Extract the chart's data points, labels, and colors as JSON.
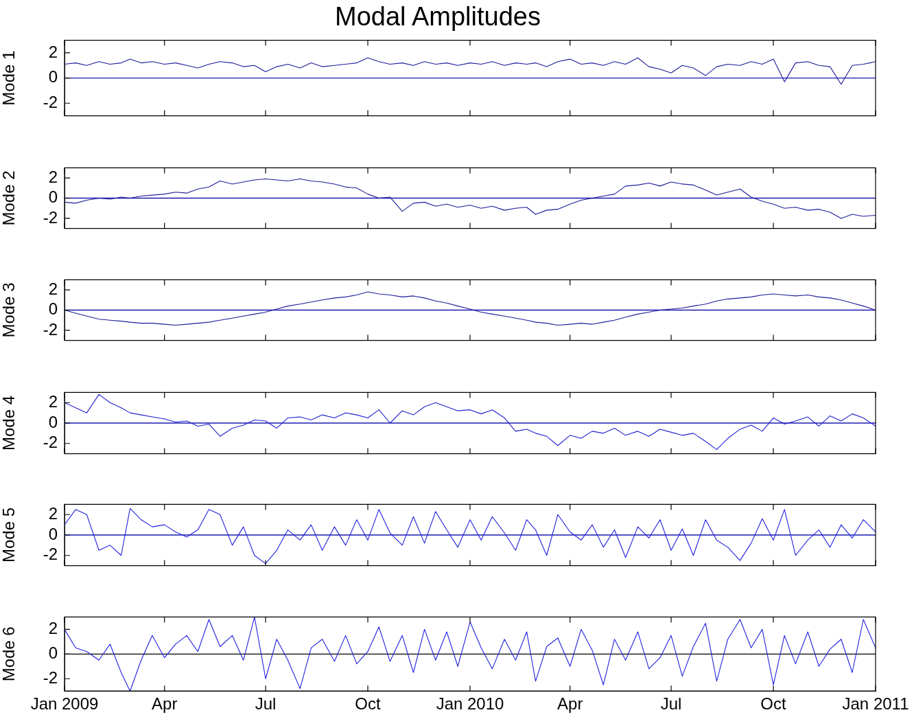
{
  "chart_data": [
    {
      "type": "line",
      "title": "Modal Amplitudes",
      "ylabel": "Mode 1",
      "tick_labels": "y",
      "legend": false,
      "marker": "none",
      "xlim": [
        "2009-01-01",
        "2011-01-01"
      ],
      "ylim": [
        -3,
        3
      ],
      "yticks": [
        -2,
        0,
        2
      ],
      "xticks": [
        {
          "value": "2009-01-01",
          "label": null
        },
        {
          "value": "2009-04-01",
          "label": null
        },
        {
          "value": "2009-07-01",
          "label": null
        },
        {
          "value": "2009-10-01",
          "label": null
        },
        {
          "value": "2010-01-01",
          "label": null
        },
        {
          "value": "2010-04-01",
          "label": null
        },
        {
          "value": "2010-07-01",
          "label": null
        },
        {
          "value": "2010-10-01",
          "label": null
        },
        {
          "value": "2011-01-01",
          "label": null
        }
      ],
      "ref_lines": [
        {
          "axis": "y",
          "value": 0,
          "color": "#1a1ab0"
        }
      ],
      "x": [
        "2009-01-01",
        "2009-01-11",
        "2009-01-21",
        "2009-02-01",
        "2009-02-11",
        "2009-02-21",
        "2009-03-01",
        "2009-03-11",
        "2009-03-21",
        "2009-04-01",
        "2009-04-11",
        "2009-04-21",
        "2009-05-01",
        "2009-05-11",
        "2009-05-21",
        "2009-06-01",
        "2009-06-11",
        "2009-06-21",
        "2009-07-01",
        "2009-07-11",
        "2009-07-21",
        "2009-08-01",
        "2009-08-11",
        "2009-08-21",
        "2009-09-01",
        "2009-09-11",
        "2009-09-21",
        "2009-10-01",
        "2009-10-11",
        "2009-10-21",
        "2009-11-01",
        "2009-11-11",
        "2009-11-21",
        "2009-12-01",
        "2009-12-11",
        "2009-12-21",
        "2010-01-01",
        "2010-01-11",
        "2010-01-21",
        "2010-02-01",
        "2010-02-11",
        "2010-02-21",
        "2010-03-01",
        "2010-03-11",
        "2010-03-21",
        "2010-04-01",
        "2010-04-11",
        "2010-04-21",
        "2010-05-01",
        "2010-05-11",
        "2010-05-21",
        "2010-06-01",
        "2010-06-11",
        "2010-06-21",
        "2010-07-01",
        "2010-07-11",
        "2010-07-21",
        "2010-08-01",
        "2010-08-11",
        "2010-08-21",
        "2010-09-01",
        "2010-09-11",
        "2010-09-21",
        "2010-10-01",
        "2010-10-11",
        "2010-10-21",
        "2010-11-01",
        "2010-11-11",
        "2010-11-21",
        "2010-12-01",
        "2010-12-11",
        "2010-12-21",
        "2011-01-01"
      ],
      "series": [
        {
          "color": "#1c1c9a",
          "values": [
            1.1,
            1.2,
            1.0,
            1.3,
            1.1,
            1.2,
            1.5,
            1.2,
            1.3,
            1.1,
            1.2,
            1.0,
            0.8,
            1.1,
            1.3,
            1.2,
            0.9,
            1.0,
            0.5,
            0.9,
            1.1,
            0.8,
            1.2,
            0.9,
            1.0,
            1.1,
            1.2,
            1.6,
            1.3,
            1.1,
            1.2,
            1.0,
            1.3,
            1.1,
            1.2,
            1.0,
            1.2,
            1.1,
            1.3,
            1.0,
            1.2,
            1.1,
            1.2,
            0.9,
            1.3,
            1.5,
            1.1,
            1.2,
            1.0,
            1.3,
            1.1,
            1.6,
            0.9,
            0.7,
            0.4,
            1.0,
            0.8,
            0.2,
            0.9,
            1.1,
            1.0,
            1.3,
            1.1,
            1.5,
            -0.3,
            1.2,
            1.3,
            1.0,
            0.9,
            -0.5,
            1.0,
            1.1,
            1.3
          ]
        }
      ]
    },
    {
      "type": "line",
      "ylabel": "Mode 2",
      "tick_labels": "y",
      "legend": false,
      "marker": "none",
      "xlim": [
        "2009-01-01",
        "2011-01-01"
      ],
      "ylim": [
        -3,
        3
      ],
      "yticks": [
        -2,
        0,
        2
      ],
      "xticks": [
        {
          "value": "2009-01-01",
          "label": null
        },
        {
          "value": "2009-04-01",
          "label": null
        },
        {
          "value": "2009-07-01",
          "label": null
        },
        {
          "value": "2009-10-01",
          "label": null
        },
        {
          "value": "2010-01-01",
          "label": null
        },
        {
          "value": "2010-04-01",
          "label": null
        },
        {
          "value": "2010-07-01",
          "label": null
        },
        {
          "value": "2010-10-01",
          "label": null
        },
        {
          "value": "2011-01-01",
          "label": null
        }
      ],
      "ref_lines": [
        {
          "axis": "y",
          "value": 0,
          "color": "#1a1ab0"
        }
      ],
      "x": [
        "2009-01-01",
        "2009-01-11",
        "2009-01-21",
        "2009-02-01",
        "2009-02-11",
        "2009-02-21",
        "2009-03-01",
        "2009-03-11",
        "2009-03-21",
        "2009-04-01",
        "2009-04-11",
        "2009-04-21",
        "2009-05-01",
        "2009-05-11",
        "2009-05-21",
        "2009-06-01",
        "2009-06-11",
        "2009-06-21",
        "2009-07-01",
        "2009-07-11",
        "2009-07-21",
        "2009-08-01",
        "2009-08-11",
        "2009-08-21",
        "2009-09-01",
        "2009-09-11",
        "2009-09-21",
        "2009-10-01",
        "2009-10-11",
        "2009-10-21",
        "2009-11-01",
        "2009-11-11",
        "2009-11-21",
        "2009-12-01",
        "2009-12-11",
        "2009-12-21",
        "2010-01-01",
        "2010-01-11",
        "2010-01-21",
        "2010-02-01",
        "2010-02-11",
        "2010-02-21",
        "2010-03-01",
        "2010-03-11",
        "2010-03-21",
        "2010-04-01",
        "2010-04-11",
        "2010-04-21",
        "2010-05-01",
        "2010-05-11",
        "2010-05-21",
        "2010-06-01",
        "2010-06-11",
        "2010-06-21",
        "2010-07-01",
        "2010-07-11",
        "2010-07-21",
        "2010-08-01",
        "2010-08-11",
        "2010-08-21",
        "2010-09-01",
        "2010-09-11",
        "2010-09-21",
        "2010-10-01",
        "2010-10-11",
        "2010-10-21",
        "2010-11-01",
        "2010-11-11",
        "2010-11-21",
        "2010-12-01",
        "2010-12-11",
        "2010-12-21",
        "2011-01-01"
      ],
      "series": [
        {
          "color": "#1c1c9a",
          "values": [
            -0.4,
            -0.5,
            -0.2,
            0.0,
            -0.1,
            0.1,
            0.0,
            0.2,
            0.3,
            0.4,
            0.6,
            0.5,
            0.9,
            1.1,
            1.7,
            1.4,
            1.6,
            1.8,
            1.9,
            1.8,
            1.7,
            1.9,
            1.7,
            1.6,
            1.4,
            1.1,
            1.0,
            0.4,
            0.0,
            0.1,
            -1.3,
            -0.5,
            -0.4,
            -0.8,
            -0.6,
            -0.9,
            -0.7,
            -1.0,
            -0.8,
            -1.2,
            -1.0,
            -0.9,
            -1.6,
            -1.2,
            -1.1,
            -0.6,
            -0.2,
            0.0,
            0.2,
            0.4,
            1.2,
            1.3,
            1.5,
            1.2,
            1.6,
            1.4,
            1.3,
            0.8,
            0.3,
            0.6,
            0.9,
            0.1,
            -0.3,
            -0.6,
            -1.0,
            -0.9,
            -1.2,
            -1.1,
            -1.4,
            -2.0,
            -1.6,
            -1.8,
            -1.7
          ]
        }
      ]
    },
    {
      "type": "line",
      "ylabel": "Mode 3",
      "tick_labels": "y",
      "legend": false,
      "marker": "none",
      "xlim": [
        "2009-01-01",
        "2011-01-01"
      ],
      "ylim": [
        -3,
        3
      ],
      "yticks": [
        -2,
        0,
        2
      ],
      "xticks": [
        {
          "value": "2009-01-01",
          "label": null
        },
        {
          "value": "2009-04-01",
          "label": null
        },
        {
          "value": "2009-07-01",
          "label": null
        },
        {
          "value": "2009-10-01",
          "label": null
        },
        {
          "value": "2010-01-01",
          "label": null
        },
        {
          "value": "2010-04-01",
          "label": null
        },
        {
          "value": "2010-07-01",
          "label": null
        },
        {
          "value": "2010-10-01",
          "label": null
        },
        {
          "value": "2011-01-01",
          "label": null
        }
      ],
      "ref_lines": [
        {
          "axis": "y",
          "value": 0,
          "color": "#1a1ab0"
        }
      ],
      "x": [
        "2009-01-01",
        "2009-01-11",
        "2009-01-21",
        "2009-02-01",
        "2009-02-11",
        "2009-02-21",
        "2009-03-01",
        "2009-03-11",
        "2009-03-21",
        "2009-04-01",
        "2009-04-11",
        "2009-04-21",
        "2009-05-01",
        "2009-05-11",
        "2009-05-21",
        "2009-06-01",
        "2009-06-11",
        "2009-06-21",
        "2009-07-01",
        "2009-07-11",
        "2009-07-21",
        "2009-08-01",
        "2009-08-11",
        "2009-08-21",
        "2009-09-01",
        "2009-09-11",
        "2009-09-21",
        "2009-10-01",
        "2009-10-11",
        "2009-10-21",
        "2009-11-01",
        "2009-11-11",
        "2009-11-21",
        "2009-12-01",
        "2009-12-11",
        "2009-12-21",
        "2010-01-01",
        "2010-01-11",
        "2010-01-21",
        "2010-02-01",
        "2010-02-11",
        "2010-02-21",
        "2010-03-01",
        "2010-03-11",
        "2010-03-21",
        "2010-04-01",
        "2010-04-11",
        "2010-04-21",
        "2010-05-01",
        "2010-05-11",
        "2010-05-21",
        "2010-06-01",
        "2010-06-11",
        "2010-06-21",
        "2010-07-01",
        "2010-07-11",
        "2010-07-21",
        "2010-08-01",
        "2010-08-11",
        "2010-08-21",
        "2010-09-01",
        "2010-09-11",
        "2010-09-21",
        "2010-10-01",
        "2010-10-11",
        "2010-10-21",
        "2010-11-01",
        "2010-11-11",
        "2010-11-21",
        "2010-12-01",
        "2010-12-11",
        "2010-12-21",
        "2011-01-01"
      ],
      "series": [
        {
          "color": "#1c1c9a",
          "values": [
            0.0,
            -0.3,
            -0.6,
            -0.9,
            -1.0,
            -1.1,
            -1.2,
            -1.3,
            -1.3,
            -1.4,
            -1.5,
            -1.4,
            -1.3,
            -1.2,
            -1.0,
            -0.8,
            -0.6,
            -0.4,
            -0.2,
            0.1,
            0.4,
            0.6,
            0.8,
            1.0,
            1.2,
            1.3,
            1.5,
            1.8,
            1.6,
            1.5,
            1.3,
            1.4,
            1.2,
            0.9,
            0.7,
            0.4,
            0.1,
            -0.2,
            -0.4,
            -0.6,
            -0.8,
            -1.0,
            -1.2,
            -1.3,
            -1.5,
            -1.4,
            -1.3,
            -1.4,
            -1.2,
            -1.0,
            -0.7,
            -0.4,
            -0.2,
            0.0,
            0.1,
            0.2,
            0.4,
            0.6,
            0.9,
            1.1,
            1.2,
            1.3,
            1.5,
            1.6,
            1.5,
            1.4,
            1.5,
            1.3,
            1.2,
            1.0,
            0.7,
            0.4,
            0.0
          ]
        }
      ]
    },
    {
      "type": "line",
      "ylabel": "Mode 4",
      "tick_labels": "y",
      "legend": false,
      "marker": "none",
      "xlim": [
        "2009-01-01",
        "2011-01-01"
      ],
      "ylim": [
        -3,
        3
      ],
      "yticks": [
        -2,
        0,
        2
      ],
      "xticks": [
        {
          "value": "2009-01-01",
          "label": null
        },
        {
          "value": "2009-04-01",
          "label": null
        },
        {
          "value": "2009-07-01",
          "label": null
        },
        {
          "value": "2009-10-01",
          "label": null
        },
        {
          "value": "2010-01-01",
          "label": null
        },
        {
          "value": "2010-04-01",
          "label": null
        },
        {
          "value": "2010-07-01",
          "label": null
        },
        {
          "value": "2010-10-01",
          "label": null
        },
        {
          "value": "2011-01-01",
          "label": null
        }
      ],
      "ref_lines": [
        {
          "axis": "y",
          "value": 0,
          "color": "#1a1ab0"
        }
      ],
      "x": [
        "2009-01-01",
        "2009-01-11",
        "2009-01-21",
        "2009-02-01",
        "2009-02-11",
        "2009-02-21",
        "2009-03-01",
        "2009-03-11",
        "2009-03-21",
        "2009-04-01",
        "2009-04-11",
        "2009-04-21",
        "2009-05-01",
        "2009-05-11",
        "2009-05-21",
        "2009-06-01",
        "2009-06-11",
        "2009-06-21",
        "2009-07-01",
        "2009-07-11",
        "2009-07-21",
        "2009-08-01",
        "2009-08-11",
        "2009-08-21",
        "2009-09-01",
        "2009-09-11",
        "2009-09-21",
        "2009-10-01",
        "2009-10-11",
        "2009-10-21",
        "2009-11-01",
        "2009-11-11",
        "2009-11-21",
        "2009-12-01",
        "2009-12-11",
        "2009-12-21",
        "2010-01-01",
        "2010-01-11",
        "2010-01-21",
        "2010-02-01",
        "2010-02-11",
        "2010-02-21",
        "2010-03-01",
        "2010-03-11",
        "2010-03-21",
        "2010-04-01",
        "2010-04-11",
        "2010-04-21",
        "2010-05-01",
        "2010-05-11",
        "2010-05-21",
        "2010-06-01",
        "2010-06-11",
        "2010-06-21",
        "2010-07-01",
        "2010-07-11",
        "2010-07-21",
        "2010-08-01",
        "2010-08-11",
        "2010-08-21",
        "2010-09-01",
        "2010-09-11",
        "2010-09-21",
        "2010-10-01",
        "2010-10-11",
        "2010-10-21",
        "2010-11-01",
        "2010-11-11",
        "2010-11-21",
        "2010-12-01",
        "2010-12-11",
        "2010-12-21",
        "2011-01-01"
      ],
      "series": [
        {
          "color": "#2020d0",
          "values": [
            2.0,
            1.5,
            1.0,
            2.8,
            2.0,
            1.5,
            1.0,
            0.8,
            0.6,
            0.4,
            0.1,
            0.2,
            -0.3,
            -0.1,
            -1.3,
            -0.5,
            -0.2,
            0.3,
            0.2,
            -0.5,
            0.5,
            0.6,
            0.3,
            0.8,
            0.5,
            1.0,
            0.8,
            0.5,
            1.3,
            0.0,
            1.2,
            0.8,
            1.6,
            2.0,
            1.6,
            1.2,
            1.3,
            0.9,
            1.3,
            0.5,
            -0.8,
            -0.6,
            -1.0,
            -1.3,
            -2.2,
            -1.2,
            -1.5,
            -0.8,
            -1.0,
            -0.5,
            -1.2,
            -0.8,
            -1.3,
            -0.6,
            -0.9,
            -1.2,
            -1.0,
            -1.8,
            -2.6,
            -1.5,
            -0.6,
            -0.2,
            -0.8,
            0.5,
            -0.1,
            0.2,
            0.6,
            -0.3,
            0.7,
            0.2,
            0.9,
            0.5,
            -0.3
          ]
        }
      ]
    },
    {
      "type": "line",
      "ylabel": "Mode 5",
      "tick_labels": "y",
      "legend": false,
      "marker": "none",
      "xlim": [
        "2009-01-01",
        "2011-01-01"
      ],
      "ylim": [
        -3,
        3
      ],
      "yticks": [
        -2,
        0,
        2
      ],
      "xticks": [
        {
          "value": "2009-01-01",
          "label": null
        },
        {
          "value": "2009-04-01",
          "label": null
        },
        {
          "value": "2009-07-01",
          "label": null
        },
        {
          "value": "2009-10-01",
          "label": null
        },
        {
          "value": "2010-01-01",
          "label": null
        },
        {
          "value": "2010-04-01",
          "label": null
        },
        {
          "value": "2010-07-01",
          "label": null
        },
        {
          "value": "2010-10-01",
          "label": null
        },
        {
          "value": "2011-01-01",
          "label": null
        }
      ],
      "ref_lines": [
        {
          "axis": "y",
          "value": 0,
          "color": "#1a1ab0"
        }
      ],
      "x": [
        "2009-01-01",
        "2009-01-11",
        "2009-01-21",
        "2009-02-01",
        "2009-02-11",
        "2009-02-21",
        "2009-03-01",
        "2009-03-11",
        "2009-03-21",
        "2009-04-01",
        "2009-04-11",
        "2009-04-21",
        "2009-05-01",
        "2009-05-11",
        "2009-05-21",
        "2009-06-01",
        "2009-06-11",
        "2009-06-21",
        "2009-07-01",
        "2009-07-11",
        "2009-07-21",
        "2009-08-01",
        "2009-08-11",
        "2009-08-21",
        "2009-09-01",
        "2009-09-11",
        "2009-09-21",
        "2009-10-01",
        "2009-10-11",
        "2009-10-21",
        "2009-11-01",
        "2009-11-11",
        "2009-11-21",
        "2009-12-01",
        "2009-12-11",
        "2009-12-21",
        "2010-01-01",
        "2010-01-11",
        "2010-01-21",
        "2010-02-01",
        "2010-02-11",
        "2010-02-21",
        "2010-03-01",
        "2010-03-11",
        "2010-03-21",
        "2010-04-01",
        "2010-04-11",
        "2010-04-21",
        "2010-05-01",
        "2010-05-11",
        "2010-05-21",
        "2010-06-01",
        "2010-06-11",
        "2010-06-21",
        "2010-07-01",
        "2010-07-11",
        "2010-07-21",
        "2010-08-01",
        "2010-08-11",
        "2010-08-21",
        "2010-09-01",
        "2010-09-11",
        "2010-09-21",
        "2010-10-01",
        "2010-10-11",
        "2010-10-21",
        "2010-11-01",
        "2010-11-11",
        "2010-11-21",
        "2010-12-01",
        "2010-12-11",
        "2010-12-21",
        "2011-01-01"
      ],
      "series": [
        {
          "color": "#2020e0",
          "values": [
            1.0,
            2.5,
            2.0,
            -1.5,
            -1.0,
            -2.0,
            2.6,
            1.5,
            0.8,
            1.0,
            0.3,
            -0.2,
            0.5,
            2.5,
            2.0,
            -1.0,
            0.8,
            -2.0,
            -2.8,
            -1.5,
            0.5,
            -0.5,
            1.0,
            -1.5,
            0.8,
            -1.0,
            1.5,
            -0.5,
            2.5,
            0.2,
            -1.0,
            1.8,
            -0.8,
            2.3,
            0.5,
            -1.2,
            1.5,
            -0.5,
            1.8,
            0.2,
            -1.5,
            1.5,
            0.5,
            -2.0,
            2.0,
            0.3,
            -0.5,
            1.0,
            -1.2,
            0.5,
            -2.2,
            0.8,
            -0.3,
            1.5,
            -1.5,
            0.6,
            -2.0,
            1.5,
            -0.5,
            -1.2,
            -2.5,
            -0.8,
            1.6,
            -0.5,
            2.5,
            -2.0,
            -0.5,
            0.5,
            -1.2,
            1.0,
            -0.3,
            1.5,
            0.3
          ]
        }
      ]
    },
    {
      "type": "line",
      "ylabel": "Mode 6",
      "legend": false,
      "marker": "none",
      "xlim": [
        "2009-01-01",
        "2011-01-01"
      ],
      "ylim": [
        -3,
        3
      ],
      "yticks": [
        -2,
        0,
        2
      ],
      "xticks": [
        {
          "value": "2009-01-01",
          "label": "Jan 2009"
        },
        {
          "value": "2009-04-01",
          "label": "Apr"
        },
        {
          "value": "2009-07-01",
          "label": "Jul"
        },
        {
          "value": "2009-10-01",
          "label": "Oct"
        },
        {
          "value": "2010-01-01",
          "label": "Jan 2010"
        },
        {
          "value": "2010-04-01",
          "label": "Apr"
        },
        {
          "value": "2010-07-01",
          "label": "Jul"
        },
        {
          "value": "2010-10-01",
          "label": "Oct"
        },
        {
          "value": "2011-01-01",
          "label": "Jan 2011"
        }
      ],
      "ref_lines": [
        {
          "axis": "y",
          "value": 0,
          "color": "#000000"
        }
      ],
      "x": [
        "2009-01-01",
        "2009-01-11",
        "2009-01-21",
        "2009-02-01",
        "2009-02-11",
        "2009-02-21",
        "2009-03-01",
        "2009-03-11",
        "2009-03-21",
        "2009-04-01",
        "2009-04-11",
        "2009-04-21",
        "2009-05-01",
        "2009-05-11",
        "2009-05-21",
        "2009-06-01",
        "2009-06-11",
        "2009-06-21",
        "2009-07-01",
        "2009-07-11",
        "2009-07-21",
        "2009-08-01",
        "2009-08-11",
        "2009-08-21",
        "2009-09-01",
        "2009-09-11",
        "2009-09-21",
        "2009-10-01",
        "2009-10-11",
        "2009-10-21",
        "2009-11-01",
        "2009-11-11",
        "2009-11-21",
        "2009-12-01",
        "2009-12-11",
        "2009-12-21",
        "2010-01-01",
        "2010-01-11",
        "2010-01-21",
        "2010-02-01",
        "2010-02-11",
        "2010-02-21",
        "2010-03-01",
        "2010-03-11",
        "2010-03-21",
        "2010-04-01",
        "2010-04-11",
        "2010-04-21",
        "2010-05-01",
        "2010-05-11",
        "2010-05-21",
        "2010-06-01",
        "2010-06-11",
        "2010-06-21",
        "2010-07-01",
        "2010-07-11",
        "2010-07-21",
        "2010-08-01",
        "2010-08-11",
        "2010-08-21",
        "2010-09-01",
        "2010-09-11",
        "2010-09-21",
        "2010-10-01",
        "2010-10-11",
        "2010-10-21",
        "2010-11-01",
        "2010-11-11",
        "2010-11-21",
        "2010-12-01",
        "2010-12-11",
        "2010-12-21",
        "2011-01-01"
      ],
      "series": [
        {
          "color": "#2020e0",
          "values": [
            2.0,
            0.5,
            0.2,
            -0.5,
            0.8,
            -1.5,
            -3.0,
            -0.5,
            1.5,
            -0.3,
            0.8,
            1.5,
            0.2,
            2.8,
            0.6,
            1.5,
            -0.5,
            3.0,
            -2.0,
            1.2,
            -0.5,
            -2.8,
            0.5,
            1.2,
            -0.6,
            1.5,
            -0.8,
            0.2,
            2.2,
            -0.6,
            1.5,
            -1.5,
            2.0,
            -0.5,
            1.8,
            -1.0,
            2.6,
            0.5,
            -1.2,
            1.2,
            -0.5,
            1.8,
            -2.2,
            0.6,
            1.3,
            -1.0,
            2.0,
            0.3,
            -2.5,
            1.2,
            -0.5,
            1.8,
            -1.2,
            -0.3,
            1.5,
            -1.8,
            0.6,
            2.5,
            -2.2,
            1.2,
            2.8,
            0.5,
            2.0,
            -2.5,
            1.5,
            -0.8,
            1.8,
            -1.0,
            0.4,
            1.2,
            -1.5,
            2.8,
            0.5
          ]
        }
      ]
    }
  ]
}
